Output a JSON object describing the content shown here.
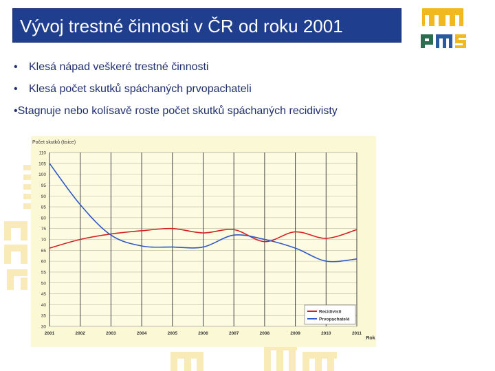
{
  "slide": {
    "title": "Vývoj trestné činnosti v ČR od roku 2001",
    "bullets": [
      {
        "marker": "•",
        "text": "Klesá nápad veškeré trestné činnosti"
      },
      {
        "marker": "•",
        "text": "Klesá počet skutků spáchaných prvopachateli"
      },
      {
        "marker": "•",
        "text": "Stagnuje nebo kolísavě roste počet skutků spáchaných recidivisty"
      }
    ],
    "logo_text": "pms"
  },
  "colors": {
    "title_bg": "#1f3f8e",
    "bullet_text": "#1f2f6e",
    "logo_green": "#2b6e4f",
    "logo_blue": "#2c5a9e",
    "logo_yellow": "#f2b81f",
    "deco": "#f7e7a6",
    "plot_bg": "#fbf8d6",
    "recidivists": "#d42020",
    "first_offenders": "#2f57c8"
  },
  "chart_data": {
    "type": "line",
    "title": "",
    "ylabel": "Počet skutků (tisíce)",
    "xlabel": "Rok",
    "ylim": [
      30,
      110
    ],
    "yticks": [
      30,
      35,
      40,
      45,
      50,
      55,
      60,
      65,
      70,
      75,
      80,
      85,
      90,
      95,
      100,
      105,
      110
    ],
    "x": [
      2001,
      2002,
      2003,
      2004,
      2005,
      2006,
      2007,
      2008,
      2009,
      2010,
      2011
    ],
    "legend_position": "bottom-right",
    "grid": true,
    "series": [
      {
        "name": "Recidivisti",
        "color": "#d42020",
        "points": [
          [
            2001,
            66
          ],
          [
            2002,
            70
          ],
          [
            2003,
            72.5
          ],
          [
            2004,
            74
          ],
          [
            2005,
            75
          ],
          [
            2006,
            73
          ],
          [
            2007,
            74.5
          ],
          [
            2008,
            69
          ],
          [
            2009,
            73.5
          ],
          [
            2010,
            70.5
          ],
          [
            2011,
            74.5
          ]
        ]
      },
      {
        "name": "Prvopachatelé",
        "color": "#2f57c8",
        "points": [
          [
            2001,
            105
          ],
          [
            2002,
            86
          ],
          [
            2003,
            72
          ],
          [
            2004,
            67
          ],
          [
            2005,
            66.5
          ],
          [
            2006,
            66.5
          ],
          [
            2007,
            72
          ],
          [
            2008,
            70
          ],
          [
            2009,
            66
          ],
          [
            2010,
            60
          ],
          [
            2011,
            61
          ]
        ]
      }
    ]
  }
}
